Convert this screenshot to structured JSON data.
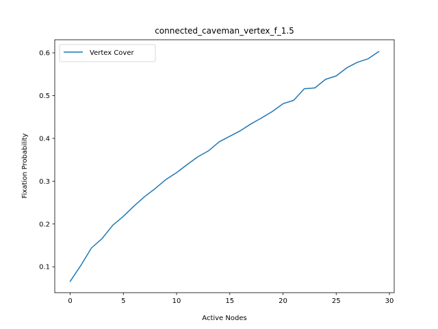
{
  "chart_data": {
    "type": "line",
    "title": "connected_caveman_vertex_f_1.5",
    "xlabel": "Active Nodes",
    "ylabel": "Fixation Probability",
    "xlim": [
      -1.45,
      30.45
    ],
    "ylim": [
      0.0395,
      0.6305
    ],
    "xticks": [
      0,
      5,
      10,
      15,
      20,
      25,
      30
    ],
    "yticks": [
      0.1,
      0.2,
      0.3,
      0.4,
      0.5,
      0.6
    ],
    "xtick_labels": [
      "0",
      "5",
      "10",
      "15",
      "20",
      "25",
      "30"
    ],
    "ytick_labels": [
      "0.1",
      "0.2",
      "0.3",
      "0.4",
      "0.5",
      "0.6"
    ],
    "grid": false,
    "legend_position": "upper left",
    "series": [
      {
        "name": "Vertex Cover",
        "color": "#1f77b4",
        "x": [
          0,
          1,
          2,
          3,
          4,
          5,
          6,
          7,
          8,
          9,
          10,
          11,
          12,
          13,
          14,
          15,
          16,
          17,
          18,
          19,
          20,
          21,
          22,
          23,
          24,
          25,
          26,
          27,
          28,
          29
        ],
        "y": [
          0.066,
          0.103,
          0.144,
          0.166,
          0.197,
          0.218,
          0.242,
          0.264,
          0.283,
          0.304,
          0.32,
          0.339,
          0.357,
          0.371,
          0.392,
          0.405,
          0.418,
          0.434,
          0.448,
          0.463,
          0.481,
          0.489,
          0.516,
          0.518,
          0.538,
          0.546,
          0.565,
          0.578,
          0.586,
          0.603
        ]
      }
    ]
  }
}
